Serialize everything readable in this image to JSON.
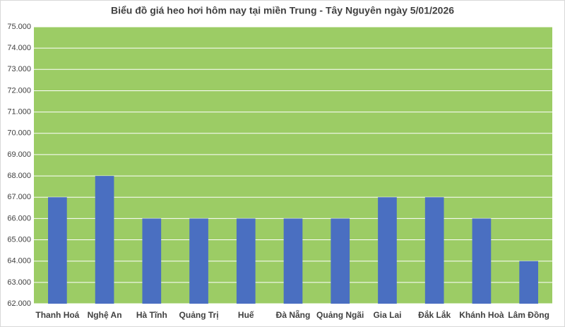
{
  "chart_data": {
    "type": "bar",
    "title": "Biểu đồ giá heo hơi hôm nay tại miền Trung - Tây Nguyên ngày 5/01/2026",
    "categories": [
      "Thanh Hoá",
      "Nghệ An",
      "Hà Tĩnh",
      "Quảng Trị",
      "Huế",
      "Đà Nẵng",
      "Quảng Ngãi",
      "Gia Lai",
      "Đắk Lắk",
      "Khánh Hoà",
      "Lâm Đồng"
    ],
    "values": [
      67000,
      68000,
      66000,
      66000,
      66000,
      66000,
      66000,
      67000,
      67000,
      66000,
      64000
    ],
    "color": "#4a6fc1",
    "plot_background": "#9ccc65",
    "ylim": [
      62000,
      75000
    ],
    "yticks": [
      {
        "value": 62000,
        "label": "62.000"
      },
      {
        "value": 63000,
        "label": "63.000"
      },
      {
        "value": 64000,
        "label": "64.000"
      },
      {
        "value": 65000,
        "label": "65.000"
      },
      {
        "value": 66000,
        "label": "66.000"
      },
      {
        "value": 67000,
        "label": "67.000"
      },
      {
        "value": 68000,
        "label": "68.000"
      },
      {
        "value": 69000,
        "label": "69.000"
      },
      {
        "value": 70000,
        "label": "70.000"
      },
      {
        "value": 71000,
        "label": "71.000"
      },
      {
        "value": 72000,
        "label": "72.000"
      },
      {
        "value": 73000,
        "label": "73.000"
      },
      {
        "value": 74000,
        "label": "74.000"
      },
      {
        "value": 75000,
        "label": "75.000"
      }
    ],
    "grid": true
  }
}
